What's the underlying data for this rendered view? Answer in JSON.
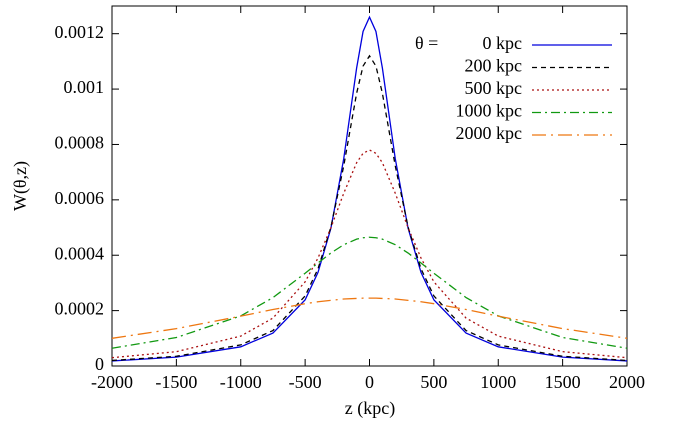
{
  "chart_data": {
    "type": "line",
    "x_label": "z (kpc)",
    "y_label": "W(θ,z)",
    "legend_title": "θ =",
    "legend": "upper right",
    "x": [
      -2000,
      -1500,
      -1000,
      -750,
      -500,
      -400,
      -300,
      -200,
      -100,
      -50,
      0,
      50,
      100,
      200,
      300,
      400,
      500,
      750,
      1000,
      1500,
      2000
    ],
    "series": [
      {
        "name": "0 kpc",
        "color": "#0000dd",
        "dash": "solid",
        "values": [
          1.83e-05,
          3.2e-05,
          6.93e-05,
          0.000119,
          0.000239,
          0.000338,
          0.000497,
          0.000749,
          0.001076,
          0.001208,
          0.00126,
          0.001208,
          0.001076,
          0.000749,
          0.000497,
          0.000338,
          0.000239,
          0.000119,
          6.93e-05,
          3.2e-05,
          1.83e-05
        ]
      },
      {
        "name": "200 kpc",
        "color": "#000000",
        "dash": "dashed",
        "values": [
          2e-05,
          3.51e-05,
          7.62e-05,
          0.000128,
          0.000253,
          0.000351,
          0.000501,
          0.000723,
          0.000985,
          0.001083,
          0.00112,
          0.001083,
          0.000985,
          0.000723,
          0.000501,
          0.000351,
          0.000253,
          0.000128,
          7.62e-05,
          3.51e-05,
          2e-05
        ]
      },
      {
        "name": "500 kpc",
        "color": "#aa1111",
        "dash": "dotted",
        "values": [
          3e-05,
          5.18e-05,
          0.000108,
          0.000173,
          0.000304,
          0.00039,
          0.000499,
          0.000624,
          0.000734,
          0.000768,
          0.00078,
          0.000768,
          0.000734,
          0.000624,
          0.000499,
          0.00039,
          0.000304,
          0.000173,
          0.000108,
          5.18e-05,
          3e-05
        ]
      },
      {
        "name": "1000 kpc",
        "color": "#119911",
        "dash": "dashdot",
        "values": [
          6.42e-05,
          0.000103,
          0.000181,
          0.000247,
          0.000335,
          0.000372,
          0.000408,
          0.000438,
          0.000458,
          0.000463,
          0.000465,
          0.000463,
          0.000458,
          0.000438,
          0.000408,
          0.000372,
          0.000335,
          0.000247,
          0.000181,
          0.000103,
          6.42e-05
        ]
      },
      {
        "name": "2000 kpc",
        "color": "#ee7711",
        "dash": "longdashdot",
        "values": [
          0.0001,
          0.000135,
          0.00018,
          0.000204,
          0.000225,
          0.000232,
          0.000237,
          0.000242,
          0.000244,
          0.000245,
          0.000245,
          0.000245,
          0.000244,
          0.000242,
          0.000237,
          0.000232,
          0.000225,
          0.000204,
          0.00018,
          0.000135,
          0.0001
        ]
      }
    ],
    "xlim": [
      -2000,
      2000
    ],
    "xticks": [
      -2000,
      -1500,
      -1000,
      -500,
      0,
      500,
      1000,
      1500,
      2000
    ],
    "ylim": [
      0,
      0.0013
    ],
    "yticks": [
      0,
      0.0002,
      0.0004,
      0.0006,
      0.0008,
      0.001,
      0.0012
    ],
    "grid": false
  }
}
